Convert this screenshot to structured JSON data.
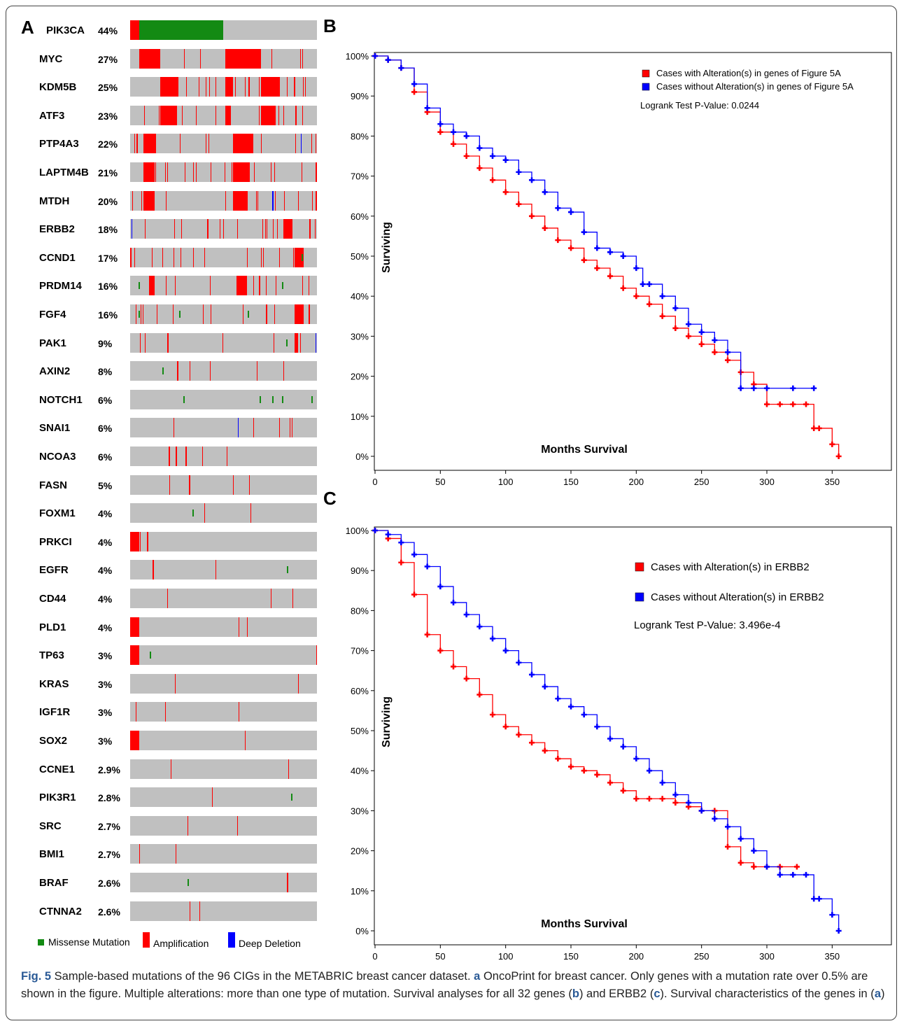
{
  "panel_labels": {
    "a": "A",
    "b": "B",
    "c": "C"
  },
  "colors": {
    "track": "#c0c0c0",
    "missense": "#138a13",
    "amplification": "#ff0000",
    "deep_deletion": "#0000ff",
    "with": "#ff0000",
    "without": "#0000ff"
  },
  "oncoprint": {
    "genes": [
      {
        "name": "PIK3CA",
        "pct": "44%"
      },
      {
        "name": "MYC",
        "pct": "27%"
      },
      {
        "name": "KDM5B",
        "pct": "25%"
      },
      {
        "name": "ATF3",
        "pct": "23%"
      },
      {
        "name": "PTP4A3",
        "pct": "22%"
      },
      {
        "name": "LAPTM4B",
        "pct": "21%"
      },
      {
        "name": "MTDH",
        "pct": "20%"
      },
      {
        "name": "ERBB2",
        "pct": "18%"
      },
      {
        "name": "CCND1",
        "pct": "17%"
      },
      {
        "name": "PRDM14",
        "pct": "16%"
      },
      {
        "name": "FGF4",
        "pct": "16%"
      },
      {
        "name": "PAK1",
        "pct": "9%"
      },
      {
        "name": "AXIN2",
        "pct": "8%"
      },
      {
        "name": "NOTCH1",
        "pct": "6%"
      },
      {
        "name": "SNAI1",
        "pct": "6%"
      },
      {
        "name": "NCOA3",
        "pct": "6%"
      },
      {
        "name": "FASN",
        "pct": "5%"
      },
      {
        "name": "FOXM1",
        "pct": "4%"
      },
      {
        "name": "PRKCI",
        "pct": "4%"
      },
      {
        "name": "EGFR",
        "pct": "4%"
      },
      {
        "name": "CD44",
        "pct": "4%"
      },
      {
        "name": "PLD1",
        "pct": "4%"
      },
      {
        "name": "TP63",
        "pct": "3%"
      },
      {
        "name": "KRAS",
        "pct": "3%"
      },
      {
        "name": "IGF1R",
        "pct": "3%"
      },
      {
        "name": "SOX2",
        "pct": "3%"
      },
      {
        "name": "CCNE1",
        "pct": "2.9%"
      },
      {
        "name": "PIK3R1",
        "pct": "2.8%"
      },
      {
        "name": "SRC",
        "pct": "2.7%"
      },
      {
        "name": "BMI1",
        "pct": "2.7%"
      },
      {
        "name": "BRAF",
        "pct": "2.6%"
      },
      {
        "name": "CTNNA2",
        "pct": "2.6%"
      }
    ],
    "legend": {
      "missense": "Missense Mutation",
      "amplification": "Amplification",
      "deep_deletion": "Deep Deletion"
    }
  },
  "chart_data": [
    {
      "type": "line",
      "panel": "B",
      "xlabel": "Months Survival",
      "ylabel": "Surviving",
      "xlim": [
        0,
        360
      ],
      "ylim": [
        0,
        100
      ],
      "xticks": [
        0,
        50,
        100,
        150,
        200,
        250,
        300,
        350
      ],
      "yticks": [
        "0%",
        "10%",
        "20%",
        "30%",
        "40%",
        "50%",
        "60%",
        "70%",
        "80%",
        "90%",
        "100%"
      ],
      "annotation": "Logrank Test P-Value: 0.0244",
      "series": [
        {
          "name": "Cases with Alteration(s) in genes of Figure 5A",
          "color": "#ff0000",
          "x": [
            0,
            10,
            20,
            30,
            40,
            50,
            60,
            70,
            80,
            90,
            100,
            110,
            120,
            130,
            140,
            150,
            160,
            170,
            180,
            190,
            200,
            210,
            220,
            230,
            240,
            250,
            260,
            270,
            280,
            290,
            300,
            310,
            320,
            330,
            336,
            340,
            350,
            355
          ],
          "y": [
            100,
            99,
            97,
            91,
            86,
            81,
            78,
            75,
            72,
            69,
            66,
            63,
            60,
            57,
            54,
            52,
            49,
            47,
            45,
            42,
            40,
            38,
            35,
            32,
            30,
            28,
            26,
            24,
            21,
            18,
            13,
            13,
            13,
            13,
            7,
            7,
            3,
            0
          ]
        },
        {
          "name": "Cases without Alteration(s) in genes of Figure 5A",
          "color": "#0000ff",
          "x": [
            0,
            10,
            20,
            30,
            40,
            50,
            60,
            70,
            80,
            90,
            100,
            110,
            120,
            130,
            140,
            150,
            160,
            170,
            180,
            190,
            200,
            205,
            210,
            220,
            230,
            240,
            250,
            260,
            270,
            280,
            290,
            300,
            320,
            336
          ],
          "y": [
            100,
            99,
            97,
            93,
            87,
            83,
            81,
            80,
            77,
            75,
            74,
            71,
            69,
            66,
            62,
            61,
            56,
            52,
            51,
            50,
            47,
            43,
            43,
            40,
            37,
            33,
            31,
            29,
            26,
            17,
            17,
            17,
            17,
            17
          ]
        }
      ]
    },
    {
      "type": "line",
      "panel": "C",
      "xlabel": "Months Survival",
      "ylabel": "Surviving",
      "xlim": [
        0,
        360
      ],
      "ylim": [
        0,
        100
      ],
      "xticks": [
        0,
        50,
        100,
        150,
        200,
        250,
        300,
        350
      ],
      "yticks": [
        "0%",
        "10%",
        "20%",
        "30%",
        "40%",
        "50%",
        "60%",
        "70%",
        "80%",
        "90%",
        "100%"
      ],
      "annotation": "Logrank Test P-Value: 3.496e-4",
      "series": [
        {
          "name": "Cases with Alteration(s) in ERBB2",
          "color": "#ff0000",
          "x": [
            0,
            10,
            20,
            30,
            40,
            50,
            60,
            70,
            80,
            90,
            100,
            110,
            120,
            130,
            140,
            150,
            160,
            170,
            180,
            190,
            200,
            210,
            220,
            230,
            240,
            250,
            260,
            270,
            280,
            290,
            300,
            310,
            323
          ],
          "y": [
            100,
            98,
            92,
            84,
            74,
            70,
            66,
            63,
            59,
            54,
            51,
            49,
            47,
            45,
            43,
            41,
            40,
            39,
            37,
            35,
            33,
            33,
            33,
            32,
            31,
            30,
            30,
            21,
            17,
            16,
            16,
            16,
            16
          ]
        },
        {
          "name": "Cases without Alteration(s) in ERBB2",
          "color": "#0000ff",
          "x": [
            0,
            10,
            20,
            30,
            40,
            50,
            60,
            70,
            80,
            90,
            100,
            110,
            120,
            130,
            140,
            150,
            160,
            170,
            180,
            190,
            200,
            210,
            220,
            230,
            240,
            250,
            260,
            270,
            280,
            290,
            300,
            310,
            320,
            330,
            336,
            340,
            350,
            355
          ],
          "y": [
            100,
            99,
            97,
            94,
            91,
            86,
            82,
            79,
            76,
            73,
            70,
            67,
            64,
            61,
            58,
            56,
            54,
            51,
            48,
            46,
            43,
            40,
            37,
            34,
            32,
            30,
            28,
            26,
            23,
            20,
            16,
            14,
            14,
            14,
            8,
            8,
            4,
            0
          ]
        }
      ]
    }
  ],
  "caption": {
    "fig_label": "Fig. 5",
    "s1": " Sample-based mutations of the 96 CIGs in the METABRIC breast cancer dataset. ",
    "a1": "a",
    "s2": " OncoPrint for breast cancer. Only genes with a mutation rate over 0.5% are shown in the figure. Multiple alterations: more than one type of mutation. Survival analyses for all 32 genes (",
    "b1": "b",
    "s3": ") and ERBB2 (",
    "c1": "c",
    "s4": "). Survival characteristics of the genes in (",
    "a2": "a",
    "s5": ")"
  }
}
